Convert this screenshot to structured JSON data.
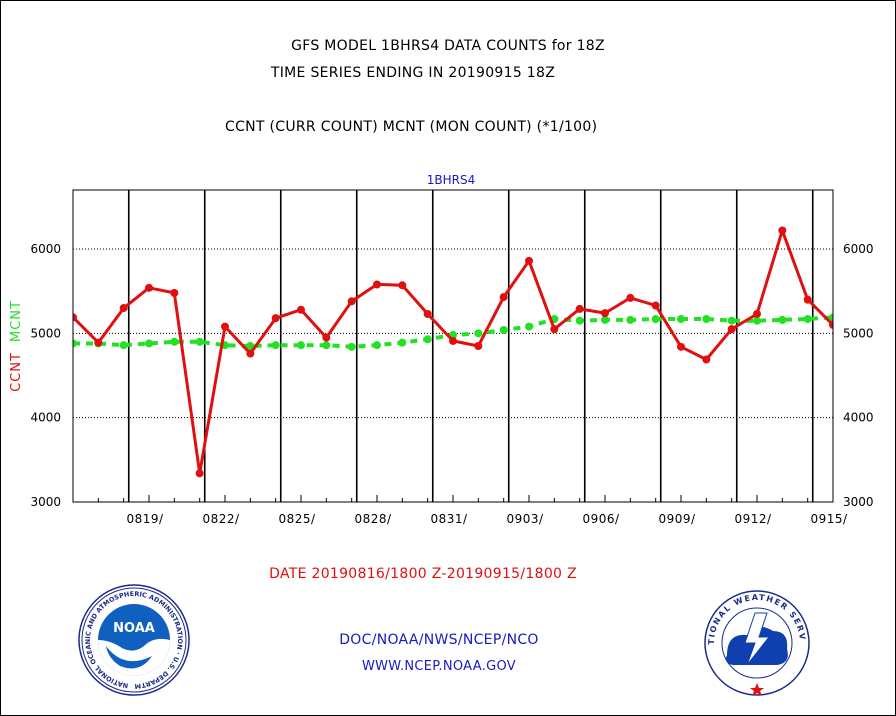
{
  "header": {
    "title_line1": "GFS MODEL 1BHRS4 DATA COUNTS for 18Z",
    "title_line2": "TIME SERIES ENDING IN 20190915 18Z",
    "subtitle": "CCNT (CURR COUNT) MCNT (MON COUNT) (*1/100)"
  },
  "footer": {
    "date_range": "DATE 20190816/1800 Z-20190915/1800 Z",
    "agency_path": "DOC/NOAA/NWS/NCEP/NCO",
    "website": "WWW.NCEP.NOAA.GOV"
  },
  "logos": {
    "noaa_text": "NOAA",
    "noaa_ring_text": "NATIONAL OCEANIC AND ATMOSPHERIC ADMINISTRATION · U.S. DEPARTMENT OF COMMERCE",
    "nws_ring_text": "NATIONAL WEATHER SERVICE"
  },
  "colors": {
    "ccnt": "#e01010",
    "mcnt": "#22e022",
    "footer_text": "#1818c8",
    "title_blue": "#1818c8"
  },
  "chart_data": {
    "type": "line",
    "title": "1BHRS4",
    "ylabel_left": [
      "CCNT",
      "MCNT"
    ],
    "xlim": [
      0,
      30
    ],
    "ylim": [
      3000,
      6700
    ],
    "yticks": [
      3000,
      4000,
      5000,
      6000
    ],
    "ytick_labels": [
      "3000",
      "4000",
      "5000",
      "6000"
    ],
    "xticks": [
      3,
      6,
      9,
      12,
      15,
      18,
      21,
      24,
      27,
      30
    ],
    "xtick_labels": [
      "0819/",
      "0822/",
      "0825/",
      "0828/",
      "0831/",
      "0903/",
      "0906/",
      "0909/",
      "0912/",
      "0915/"
    ],
    "vertical_grid_x": [
      2.2,
      5.2,
      8.2,
      11.2,
      14.2,
      17.2,
      20.2,
      23.2,
      26.2,
      29.2
    ],
    "horizontal_grid": true,
    "series": [
      {
        "name": "CCNT",
        "color": "#e01010",
        "style": "solid",
        "x": [
          0,
          1,
          2,
          3,
          4,
          5,
          6,
          7,
          8,
          9,
          10,
          11,
          12,
          13,
          14,
          15,
          16,
          17,
          18,
          19,
          20,
          21,
          22,
          23,
          24,
          25,
          26,
          27,
          28,
          29,
          30
        ],
        "values": [
          5190,
          4890,
          5300,
          5540,
          5480,
          3340,
          5080,
          4760,
          5180,
          5280,
          4950,
          5380,
          5580,
          5570,
          5230,
          4910,
          4850,
          5430,
          5860,
          5050,
          5290,
          5240,
          5420,
          5330,
          4840,
          4690,
          5050,
          5230,
          6220,
          5400,
          5100
        ]
      },
      {
        "name": "MCNT",
        "color": "#22e022",
        "style": "dashed",
        "x": [
          0,
          1,
          2,
          3,
          4,
          5,
          6,
          7,
          8,
          9,
          10,
          11,
          12,
          13,
          14,
          15,
          16,
          17,
          18,
          19,
          20,
          21,
          22,
          23,
          24,
          25,
          26,
          27,
          28,
          29,
          30
        ],
        "values": [
          4880,
          4880,
          4860,
          4880,
          4900,
          4900,
          4860,
          4850,
          4860,
          4860,
          4860,
          4840,
          4860,
          4890,
          4930,
          4980,
          5000,
          5040,
          5080,
          5170,
          5150,
          5160,
          5160,
          5170,
          5170,
          5170,
          5150,
          5150,
          5160,
          5170,
          5190
        ]
      }
    ]
  }
}
